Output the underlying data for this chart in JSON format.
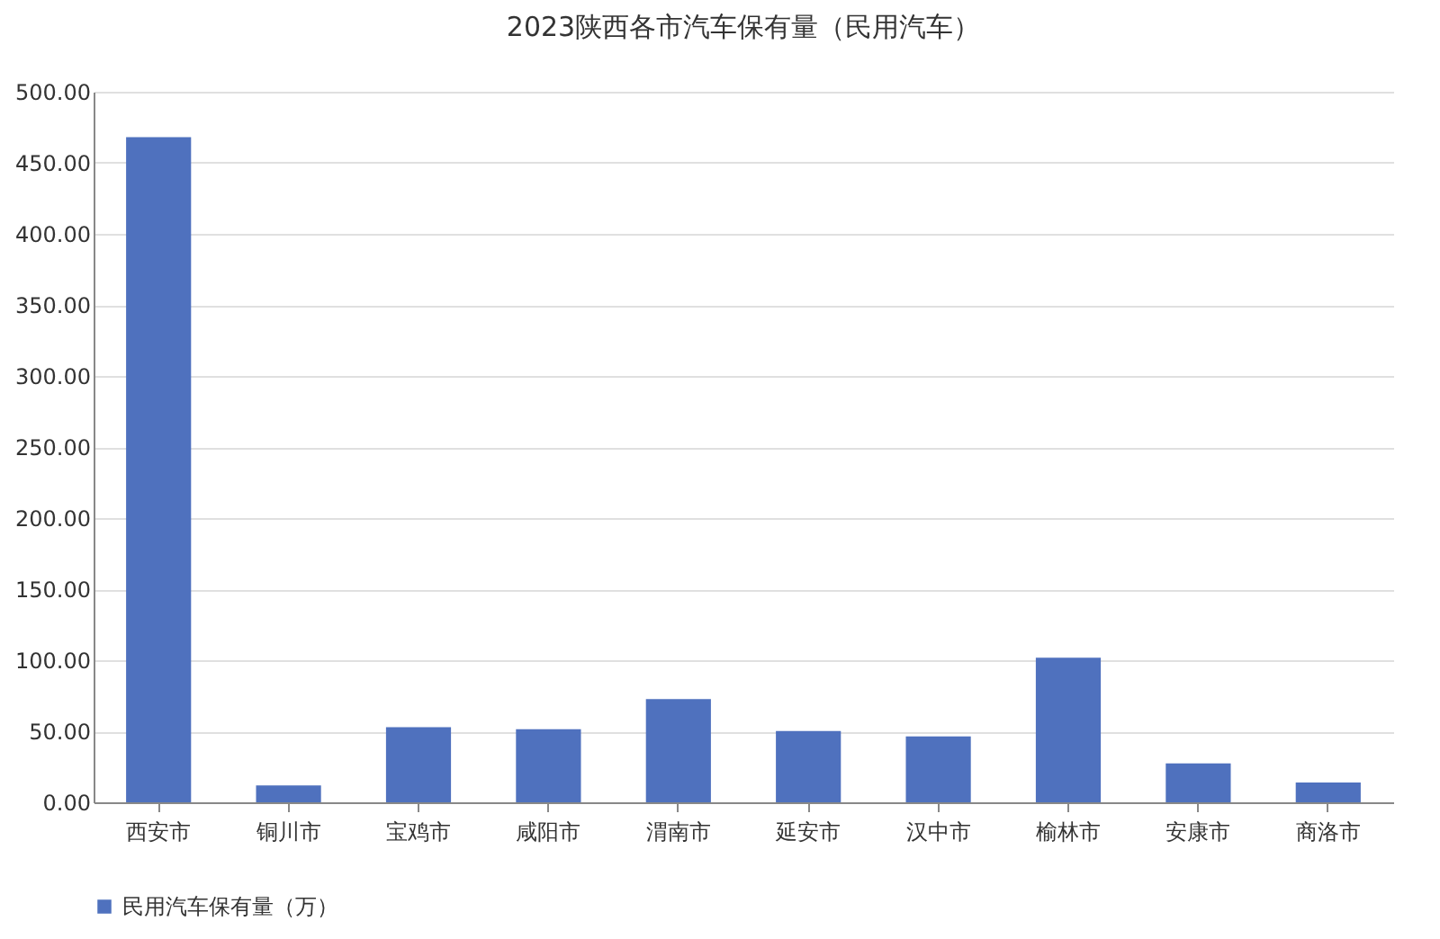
{
  "chart_data": {
    "type": "bar",
    "title": "2023陕西各市汽车保有量（民用汽车）",
    "categories": [
      "西安市",
      "铜川市",
      "宝鸡市",
      "咸阳市",
      "渭南市",
      "延安市",
      "汉中市",
      "榆林市",
      "安康市",
      "商洛市"
    ],
    "series": [
      {
        "name": "民用汽车保有量（万）",
        "color": "#4f71be",
        "values": [
          468,
          11.8,
          52.8,
          51.5,
          72.6,
          50.2,
          46.4,
          101.7,
          27.4,
          13.9
        ]
      }
    ],
    "ylim": [
      0,
      500
    ],
    "yticks": [
      {
        "value": 0,
        "label": "0.00"
      },
      {
        "value": 50,
        "label": "50.00"
      },
      {
        "value": 100,
        "label": "100.00"
      },
      {
        "value": 150,
        "label": "150.00"
      },
      {
        "value": 200,
        "label": "200.00"
      },
      {
        "value": 250,
        "label": "250.00"
      },
      {
        "value": 300,
        "label": "300.00"
      },
      {
        "value": 350,
        "label": "350.00"
      },
      {
        "value": 400,
        "label": "400.00"
      },
      {
        "value": 450,
        "label": "450.00"
      },
      {
        "value": 500,
        "label": "500.00"
      }
    ],
    "grid": "y",
    "legend": "bottom"
  }
}
